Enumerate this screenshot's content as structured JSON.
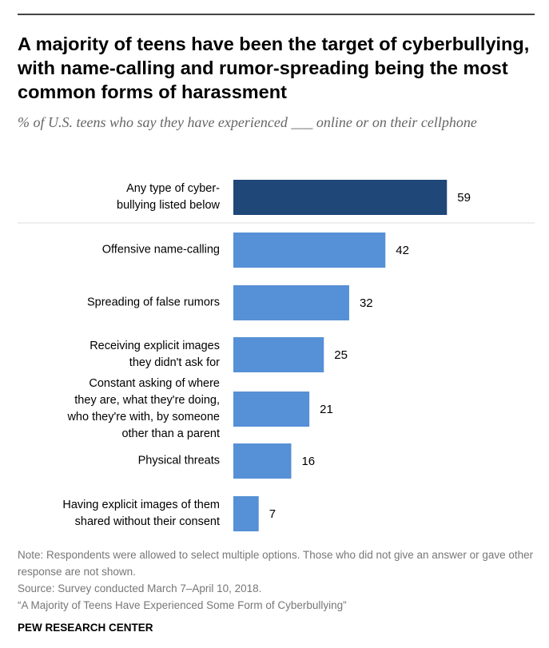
{
  "header": {
    "title": "A majority of teens have been the target of cyberbullying, with name-calling and rumor-spreading being the most common forms of harassment",
    "subtitle": "% of U.S. teens who say they have experienced ___ online or on their cellphone"
  },
  "chart_data": {
    "type": "bar",
    "orientation": "horizontal",
    "title": "A majority of teens have been the target of cyberbullying, with name-calling and rumor-spreading being the most common forms of harassment",
    "subtitle": "% of U.S. teens who say they have experienced ___ online or on their cellphone",
    "categories": [
      "Any type of cyber-\nbullying listed below",
      "Offensive name-calling",
      "Spreading of false rumors",
      "Receiving explicit images\nthey didn't ask for",
      "Constant asking of where\nthey are, what they're doing,\nwho they're with, by someone\nother than a parent",
      "Physical threats",
      "Having explicit images of them\nshared without their consent"
    ],
    "values": [
      59,
      42,
      32,
      25,
      21,
      16,
      7
    ],
    "value_labels": [
      "59",
      "42",
      "32",
      "25",
      "21",
      "16",
      "7"
    ],
    "highlight_index": 0,
    "colors": {
      "highlight": "#1f4778",
      "bar": "#5690d6",
      "separator": "#dddddd"
    },
    "xlim": [
      0,
      100
    ],
    "xlabel": "",
    "ylabel": "",
    "grid": false,
    "legend": "none"
  },
  "footer": {
    "note": "Note: Respondents were allowed to select multiple options. Those who did not give an answer or gave other response are not shown.",
    "source": "Source: Survey conducted March 7–April 10, 2018.",
    "report": "“A Majority of Teens Have Experienced Some Form of Cyberbullying”",
    "brand": "PEW RESEARCH CENTER"
  }
}
